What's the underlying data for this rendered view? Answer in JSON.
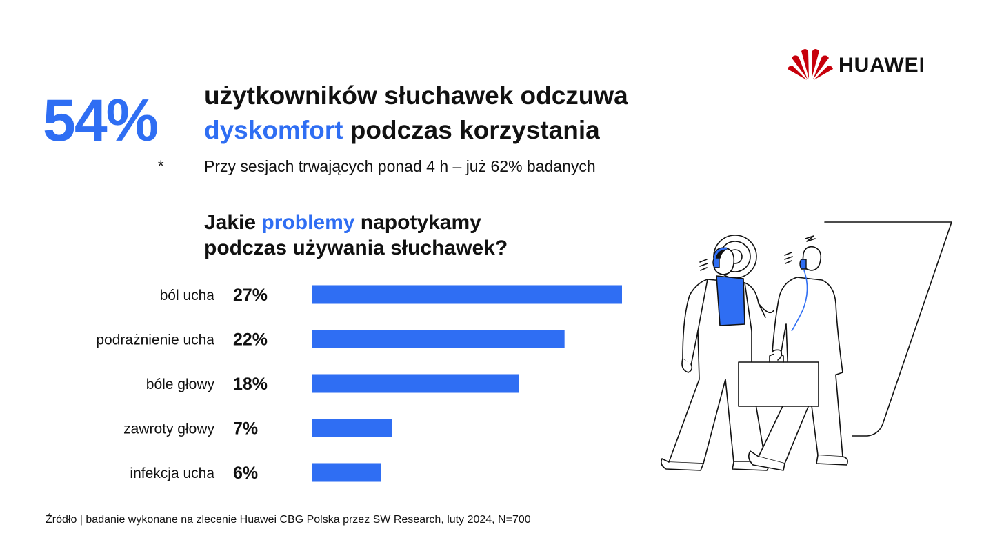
{
  "brand": {
    "name": "HUAWEI",
    "color": "#c7000b"
  },
  "accent_color": "#2f6ef3",
  "headline": {
    "big_percent": "54%",
    "line1": "użytkowników słuchawek odczuwa",
    "line2_accent": "dyskomfort",
    "line2_rest": " podczas korzystania",
    "asterisk": "*",
    "note": "Przy sesjach trwających ponad 4 h – już 62% badanych"
  },
  "question": {
    "line1_pre": "Jakie ",
    "line1_accent": "problemy",
    "line1_post": " napotykamy",
    "line2": "podczas używania słuchawek?"
  },
  "chart_data": {
    "type": "bar",
    "orientation": "horizontal",
    "categories": [
      "ból ucha",
      "podrażnienie ucha",
      "bóle głowy",
      "zawroty głowy",
      "infekcja ucha"
    ],
    "values": [
      27,
      22,
      18,
      7,
      6
    ],
    "value_labels": [
      "27%",
      "22%",
      "18%",
      "7%",
      "6%"
    ],
    "unit": "%",
    "bar_color": "#2f6ef3",
    "grid": false
  },
  "source": "Źródło | badanie wykonane na zlecenie Huawei CBG Polska przez SW Research, luty 2024, N=700"
}
